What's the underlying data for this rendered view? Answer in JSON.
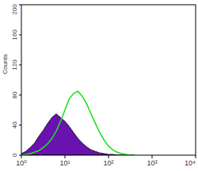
{
  "chart_data": {
    "type": "line",
    "y_label": "Counts",
    "log": "x",
    "xlim": [
      1,
      10000
    ],
    "ylim": [
      0,
      200
    ],
    "xticks": [
      {
        "value": 1,
        "label": "10⁰"
      },
      {
        "value": 10,
        "label": "10¹"
      },
      {
        "value": 100,
        "label": "10²"
      },
      {
        "value": 1000,
        "label": "10³"
      },
      {
        "value": 10000,
        "label": "10⁴"
      }
    ],
    "yticks": [
      0,
      40,
      80,
      120,
      160,
      200
    ],
    "x": [
      1,
      1.26,
      1.58,
      2,
      2.51,
      3.16,
      3.98,
      5.01,
      6.31,
      7.94,
      10,
      12.6,
      15.8,
      20,
      25.1,
      31.6,
      39.8,
      50.1,
      63.1,
      79.4,
      100,
      126,
      158,
      200,
      251,
      316,
      398
    ],
    "series": [
      {
        "type": "area",
        "color": "#6a12b0",
        "values": [
          2,
          5,
          10,
          16,
          25,
          33,
          42,
          50,
          55,
          50,
          45,
          38,
          30,
          22,
          16,
          11,
          7,
          5,
          3,
          2,
          1,
          1,
          0,
          0,
          0,
          0,
          0
        ]
      },
      {
        "type": "line",
        "color": "#22dd22",
        "values": [
          0,
          1,
          2,
          4,
          6,
          10,
          15,
          22,
          32,
          45,
          60,
          75,
          82,
          85,
          78,
          68,
          55,
          42,
          30,
          20,
          12,
          7,
          4,
          2,
          1,
          0,
          0
        ]
      }
    ]
  }
}
